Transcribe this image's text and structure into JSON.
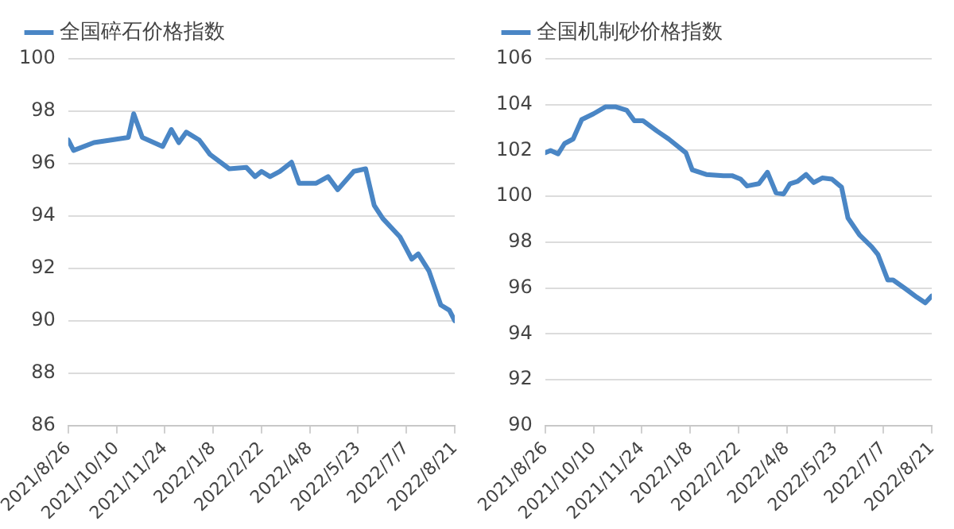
{
  "chart_data": [
    {
      "type": "line",
      "legend": "top",
      "grid": "y",
      "marker": "none",
      "line_style": "solid",
      "x": [
        "2021-08-26",
        "2021-08-31",
        "2021-09-19",
        "2021-10-21",
        "2021-10-26",
        "2021-11-03",
        "2021-11-22",
        "2021-11-30",
        "2021-12-07",
        "2021-12-14",
        "2021-12-26",
        "2022-01-05",
        "2022-01-23",
        "2022-02-08",
        "2022-02-16",
        "2022-02-22",
        "2022-03-02",
        "2022-03-11",
        "2022-03-22",
        "2022-03-29",
        "2022-04-14",
        "2022-04-25",
        "2022-05-04",
        "2022-05-19",
        "2022-05-30",
        "2022-06-07",
        "2022-06-15",
        "2022-07-01",
        "2022-07-12",
        "2022-07-18",
        "2022-07-28",
        "2022-08-08",
        "2022-08-16",
        "2022-08-21"
      ],
      "series": [
        {
          "name": "全国碎石价格指数",
          "color": "#4a86c5",
          "values": [
            96.9,
            96.5,
            96.8,
            97.0,
            97.9,
            97.0,
            96.65,
            97.3,
            96.8,
            97.2,
            96.9,
            96.35,
            95.8,
            95.85,
            95.5,
            95.7,
            95.5,
            95.7,
            96.05,
            95.25,
            95.25,
            95.5,
            95.0,
            95.7,
            95.8,
            94.4,
            93.9,
            93.2,
            92.35,
            92.55,
            91.9,
            90.6,
            90.4,
            90.0
          ]
        }
      ],
      "xlim": [
        "2021-08-26",
        "2022-08-21"
      ],
      "xticks": [
        {
          "value": "2021-08-26",
          "label": "2021/8/26"
        },
        {
          "value": "2021-10-10",
          "label": "2021/10/10"
        },
        {
          "value": "2021-11-24",
          "label": "2021/11/24"
        },
        {
          "value": "2022-01-08",
          "label": "2022/1/8"
        },
        {
          "value": "2022-02-22",
          "label": "2022/2/22"
        },
        {
          "value": "2022-04-08",
          "label": "2022/4/8"
        },
        {
          "value": "2022-05-23",
          "label": "2022/5/23"
        },
        {
          "value": "2022-07-07",
          "label": "2022/7/7"
        },
        {
          "value": "2022-08-21",
          "label": "2022/8/21"
        }
      ],
      "ylim": [
        86,
        100
      ],
      "yticks": [
        86,
        88,
        90,
        92,
        94,
        96,
        98,
        100
      ]
    },
    {
      "type": "line",
      "legend": "top",
      "grid": "y",
      "marker": "none",
      "line_style": "solid",
      "x": [
        "2021-08-26",
        "2021-08-31",
        "2021-09-07",
        "2021-09-13",
        "2021-09-21",
        "2021-09-29",
        "2021-10-10",
        "2021-10-21",
        "2021-10-31",
        "2021-11-10",
        "2021-11-17",
        "2021-11-25",
        "2021-12-08",
        "2021-12-19",
        "2022-01-04",
        "2022-01-10",
        "2022-01-23",
        "2022-02-08",
        "2022-02-16",
        "2022-02-24",
        "2022-03-02",
        "2022-03-13",
        "2022-03-21",
        "2022-03-29",
        "2022-04-05",
        "2022-04-11",
        "2022-04-18",
        "2022-04-26",
        "2022-05-03",
        "2022-05-11",
        "2022-05-20",
        "2022-05-29",
        "2022-06-04",
        "2022-06-15",
        "2022-06-26",
        "2022-07-02",
        "2022-07-11",
        "2022-07-16",
        "2022-07-28",
        "2022-08-07",
        "2022-08-15",
        "2022-08-21"
      ],
      "series": [
        {
          "name": "全国机制砂价格指数",
          "color": "#4a86c5",
          "values": [
            101.9,
            102.0,
            101.85,
            102.3,
            102.5,
            103.35,
            103.6,
            103.9,
            103.9,
            103.75,
            103.3,
            103.3,
            102.85,
            102.5,
            101.9,
            101.15,
            100.95,
            100.9,
            100.9,
            100.75,
            100.45,
            100.55,
            101.05,
            100.15,
            100.1,
            100.55,
            100.65,
            100.95,
            100.6,
            100.8,
            100.75,
            100.4,
            99.05,
            98.3,
            97.8,
            97.45,
            96.35,
            96.35,
            95.95,
            95.6,
            95.35,
            95.65
          ]
        }
      ],
      "xlim": [
        "2021-08-26",
        "2022-08-21"
      ],
      "xticks": [
        {
          "value": "2021-08-26",
          "label": "2021/8/26"
        },
        {
          "value": "2021-10-10",
          "label": "2021/10/10"
        },
        {
          "value": "2021-11-24",
          "label": "2021/11/24"
        },
        {
          "value": "2022-01-08",
          "label": "2022/1/8"
        },
        {
          "value": "2022-02-22",
          "label": "2022/2/22"
        },
        {
          "value": "2022-04-08",
          "label": "2022/4/8"
        },
        {
          "value": "2022-05-23",
          "label": "2022/5/23"
        },
        {
          "value": "2022-07-07",
          "label": "2022/7/7"
        },
        {
          "value": "2022-08-21",
          "label": "2022/8/21"
        }
      ],
      "ylim": [
        90,
        106
      ],
      "yticks": [
        90,
        92,
        94,
        96,
        98,
        100,
        102,
        104,
        106
      ]
    }
  ]
}
